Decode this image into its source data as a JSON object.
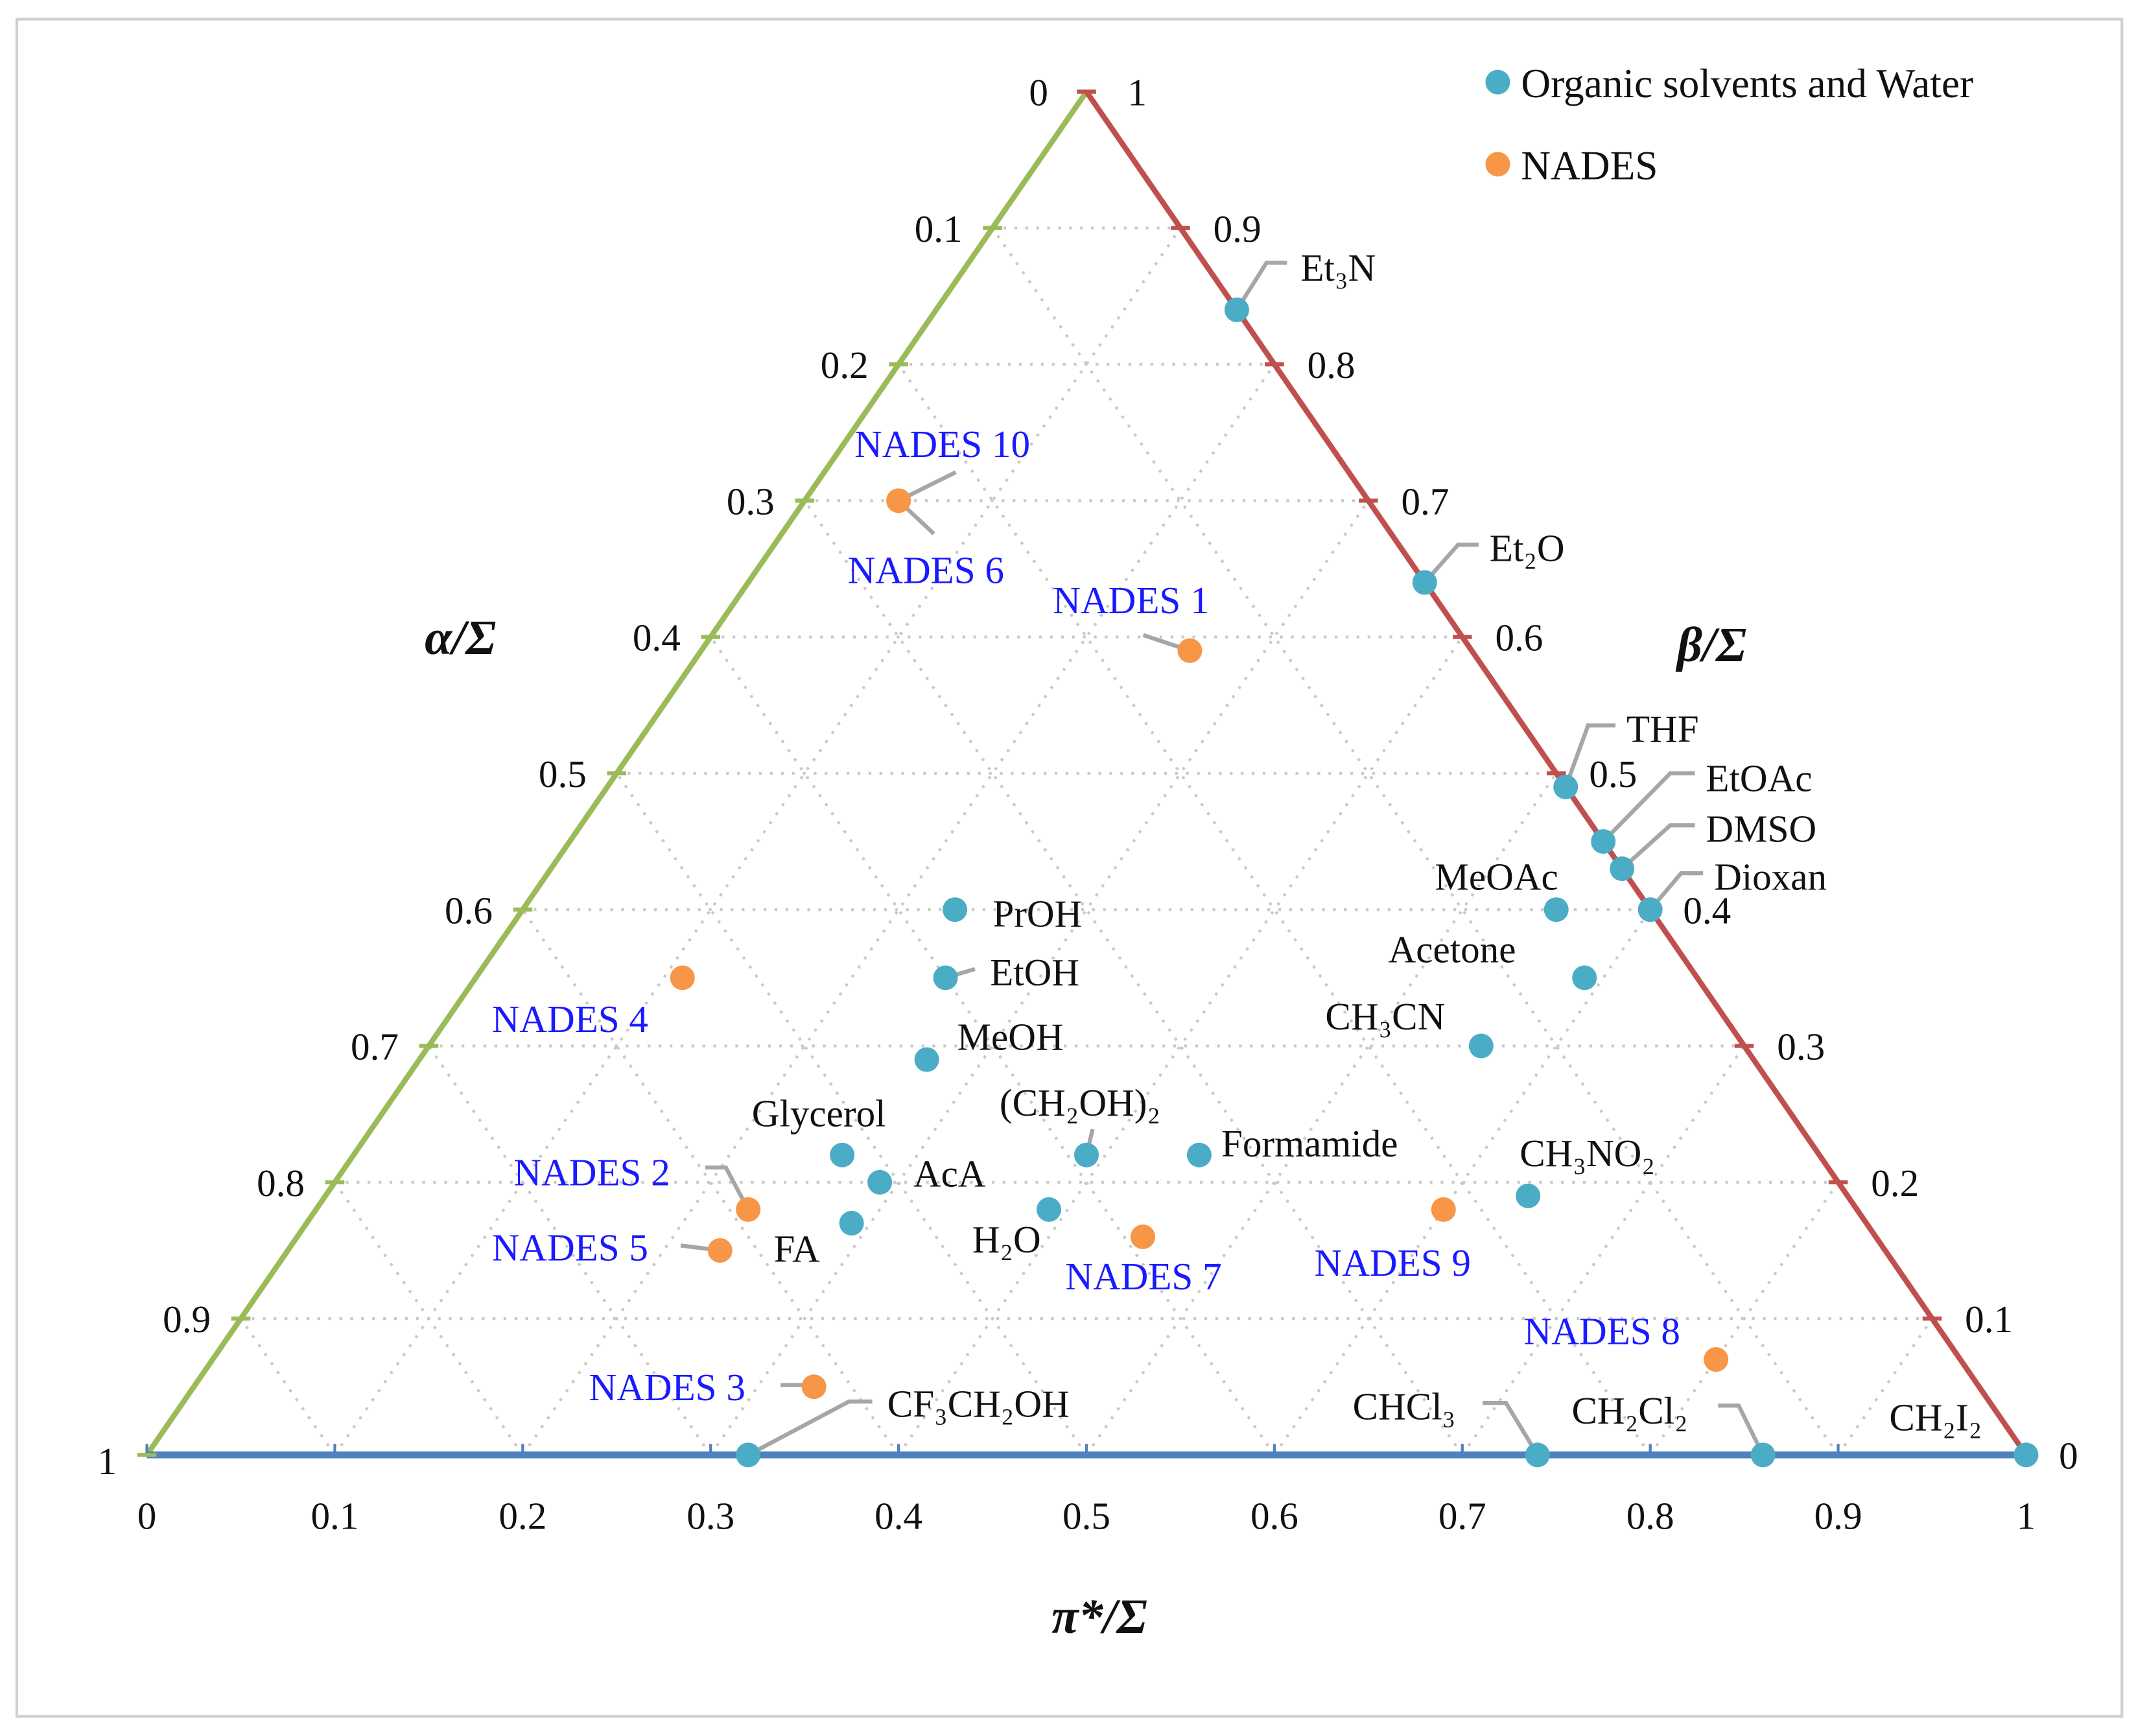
{
  "chart_data": {
    "type": "scatter",
    "subtype": "ternary",
    "axes": {
      "bottom": {
        "label": "π*/Σ",
        "ticks": [
          "0",
          "0.1",
          "0.2",
          "0.3",
          "0.4",
          "0.5",
          "0.6",
          "0.7",
          "0.8",
          "0.9",
          "1"
        ],
        "color": "#4f81bd"
      },
      "left": {
        "label": "α/Σ",
        "ticks": [
          "0",
          "0.1",
          "0.2",
          "0.3",
          "0.4",
          "0.5",
          "0.6",
          "0.7",
          "0.8",
          "0.9",
          "1"
        ],
        "color": "#9bbb59"
      },
      "right": {
        "label": "β/Σ",
        "ticks": [
          "1",
          "0.9",
          "0.8",
          "0.7",
          "0.6",
          "0.5",
          "0.4",
          "0.3",
          "0.2",
          "0.1",
          "0"
        ],
        "color": "#c0504d"
      }
    },
    "grid": true,
    "legend": {
      "placement": "top-right"
    },
    "series": [
      {
        "name": "Organic solvents and Water",
        "color": "#4bacc6",
        "points": [
          {
            "label": "Et₃N",
            "alpha": 0.0,
            "beta": 0.84,
            "pi": 0.16
          },
          {
            "label": "Et₂O",
            "alpha": 0.0,
            "beta": 0.64,
            "pi": 0.36
          },
          {
            "label": "THF",
            "alpha": 0.0,
            "beta": 0.49,
            "pi": 0.51
          },
          {
            "label": "EtOAc",
            "alpha": 0.0,
            "beta": 0.45,
            "pi": 0.55
          },
          {
            "label": "DMSO",
            "alpha": 0.0,
            "beta": 0.43,
            "pi": 0.57
          },
          {
            "label": "Dioxan",
            "alpha": 0.0,
            "beta": 0.4,
            "pi": 0.6
          },
          {
            "label": "MeOAc",
            "alpha": 0.05,
            "beta": 0.4,
            "pi": 0.55
          },
          {
            "label": "Acetone",
            "alpha": 0.06,
            "beta": 0.35,
            "pi": 0.59
          },
          {
            "label": "CH₃CN",
            "alpha": 0.14,
            "beta": 0.3,
            "pi": 0.56
          },
          {
            "label": "CH₃NO₂",
            "alpha": 0.17,
            "beta": 0.19,
            "pi": 0.64
          },
          {
            "label": "CHCl₃",
            "alpha": 0.26,
            "beta": 0.0,
            "pi": 0.74
          },
          {
            "label": "CH₂Cl₂",
            "alpha": 0.14,
            "beta": 0.0,
            "pi": 0.86
          },
          {
            "label": "CH₂I₂",
            "alpha": 0.0,
            "beta": 0.0,
            "pi": 1.0
          },
          {
            "label": "CF₃CH₂OH",
            "alpha": 0.68,
            "beta": 0.0,
            "pi": 0.32
          },
          {
            "label": "PrOH",
            "alpha": 0.37,
            "beta": 0.4,
            "pi": 0.23
          },
          {
            "label": "EtOH",
            "alpha": 0.4,
            "beta": 0.35,
            "pi": 0.25
          },
          {
            "label": "MeOH",
            "alpha": 0.44,
            "beta": 0.29,
            "pi": 0.27
          },
          {
            "label": "Glycerol",
            "alpha": 0.52,
            "beta": 0.22,
            "pi": 0.26
          },
          {
            "label": "AcA",
            "alpha": 0.51,
            "beta": 0.2,
            "pi": 0.29
          },
          {
            "label": "FA",
            "alpha": 0.54,
            "beta": 0.17,
            "pi": 0.29
          },
          {
            "label": "(CH₂OH)₂",
            "alpha": 0.39,
            "beta": 0.22,
            "pi": 0.39
          },
          {
            "label": "Formamide",
            "alpha": 0.33,
            "beta": 0.22,
            "pi": 0.45
          },
          {
            "label": "H₂O",
            "alpha": 0.43,
            "beta": 0.18,
            "pi": 0.39
          }
        ]
      },
      {
        "name": "NADES",
        "color": "#f79646",
        "points": [
          {
            "label": "NADES 10",
            "alpha": 0.25,
            "beta": 0.7,
            "pi": 0.05
          },
          {
            "label": "NADES 6",
            "alpha": 0.25,
            "beta": 0.7,
            "pi": 0.05
          },
          {
            "label": "NADES 1",
            "alpha": 0.15,
            "beta": 0.59,
            "pi": 0.26
          },
          {
            "label": "NADES 4",
            "alpha": 0.54,
            "beta": 0.35,
            "pi": 0.11
          },
          {
            "label": "NADES 2",
            "alpha": 0.59,
            "beta": 0.18,
            "pi": 0.23
          },
          {
            "label": "NADES 5",
            "alpha": 0.62,
            "beta": 0.15,
            "pi": 0.23
          },
          {
            "label": "NADES 7",
            "alpha": 0.39,
            "beta": 0.16,
            "pi": 0.45
          },
          {
            "label": "NADES 9",
            "alpha": 0.22,
            "beta": 0.18,
            "pi": 0.6
          },
          {
            "label": "NADES 8",
            "alpha": 0.13,
            "beta": 0.07,
            "pi": 0.8
          },
          {
            "label": "NADES 3",
            "alpha": 0.62,
            "beta": 0.05,
            "pi": 0.33
          }
        ]
      }
    ]
  }
}
